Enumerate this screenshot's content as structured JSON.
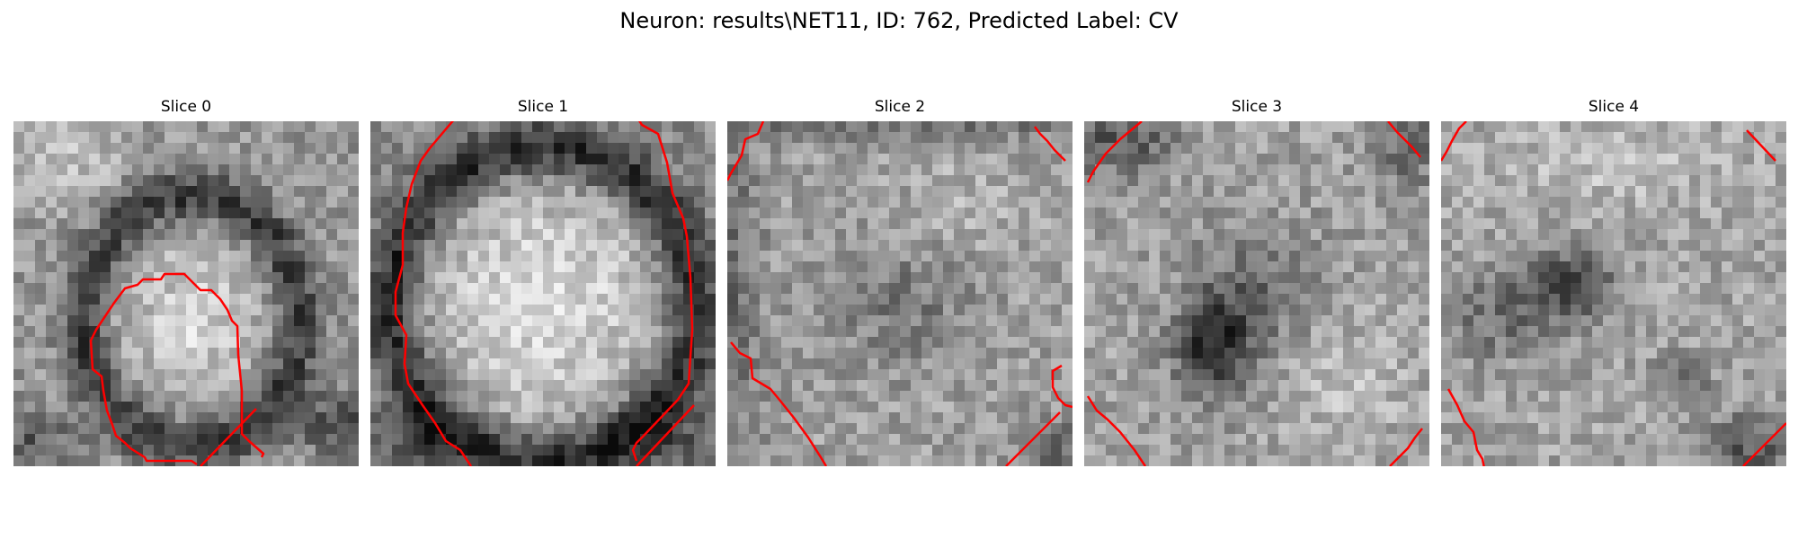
{
  "figure": {
    "suptitle": "Neuron: results\\NET11, ID: 762, Predicted Label: CV"
  },
  "colors": {
    "contour": "#ff0000",
    "background": "#ffffff"
  },
  "panels": [
    {
      "title": "Slice 0",
      "brightness_map": "bright ellipse in center, dark ring, bright top-left"
    },
    {
      "title": "Slice 1",
      "brightness_map": "large bright oval, dark ring around edges"
    },
    {
      "title": "Slice 2",
      "brightness_map": "mottled mid-gray, darker borders"
    },
    {
      "title": "Slice 3",
      "brightness_map": "mottled with dark blob lower-left-center"
    },
    {
      "title": "Slice 4",
      "brightness_map": "mottled with dark blob center-left, dark bottom-right"
    }
  ]
}
